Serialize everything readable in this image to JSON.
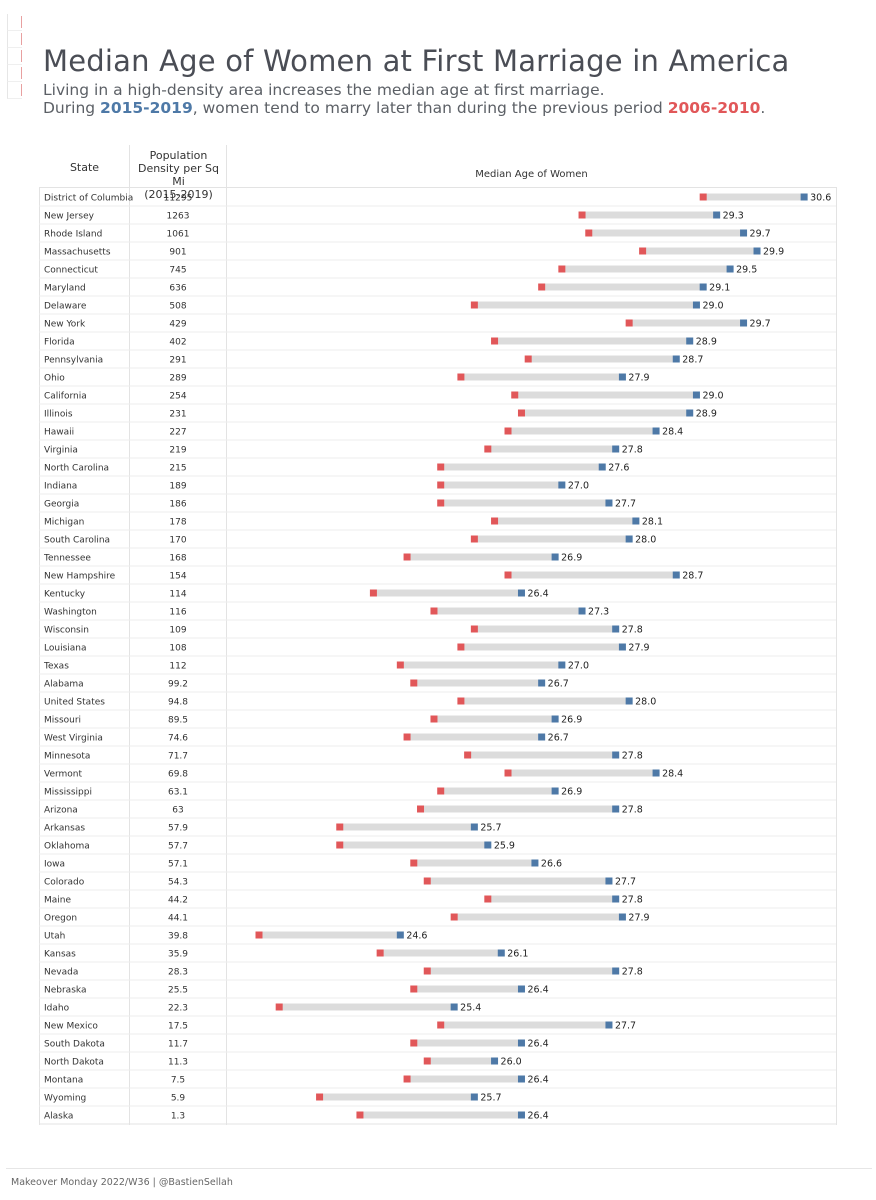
{
  "header": {
    "title": "Median Age of Women at First Marriage in America",
    "subtitle_line1": "Living in a high-density area increases the median age at first marriage.",
    "subtitle_line2_a": "During ",
    "subtitle_line2_b": "2015-2019",
    "subtitle_line2_c": ", women tend to marry later than during the previous period ",
    "subtitle_line2_d": "2006-2010",
    "subtitle_line2_e": "."
  },
  "columns": {
    "state": "State",
    "density_l1": "Population",
    "density_l2": "Density per Sq Mi",
    "density_l3": "(2015-2019)",
    "chart": "Median Age of Women"
  },
  "colors": {
    "period_2015_2019": "#4e79a7",
    "period_2006_2010": "#e15759",
    "range_bar": "#dcdcdc"
  },
  "footer": "Makeover Monday 2022/W36 | @BastienSellah",
  "chart_data": {
    "type": "dumbbell",
    "series_names": [
      "2006-2010",
      "2015-2019"
    ],
    "labels_shown_for": "2015-2019",
    "rows": [
      {
        "state": "District of Columbia",
        "density": "11295",
        "v2010": 29.1,
        "v2019": 30.6
      },
      {
        "state": "New Jersey",
        "density": "1263",
        "v2010": 27.3,
        "v2019": 29.3
      },
      {
        "state": "Rhode Island",
        "density": "1061",
        "v2010": 27.4,
        "v2019": 29.7
      },
      {
        "state": "Massachusetts",
        "density": "901",
        "v2010": 28.2,
        "v2019": 29.9
      },
      {
        "state": "Connecticut",
        "density": "745",
        "v2010": 27.0,
        "v2019": 29.5
      },
      {
        "state": "Maryland",
        "density": "636",
        "v2010": 26.7,
        "v2019": 29.1
      },
      {
        "state": "Delaware",
        "density": "508",
        "v2010": 25.7,
        "v2019": 29.0
      },
      {
        "state": "New York",
        "density": "429",
        "v2010": 28.0,
        "v2019": 29.7
      },
      {
        "state": "Florida",
        "density": "402",
        "v2010": 26.0,
        "v2019": 28.9
      },
      {
        "state": "Pennsylvania",
        "density": "291",
        "v2010": 26.5,
        "v2019": 28.7
      },
      {
        "state": "Ohio",
        "density": "289",
        "v2010": 25.5,
        "v2019": 27.9
      },
      {
        "state": "California",
        "density": "254",
        "v2010": 26.3,
        "v2019": 29.0
      },
      {
        "state": "Illinois",
        "density": "231",
        "v2010": 26.4,
        "v2019": 28.9
      },
      {
        "state": "Hawaii",
        "density": "227",
        "v2010": 26.2,
        "v2019": 28.4
      },
      {
        "state": "Virginia",
        "density": "219",
        "v2010": 25.9,
        "v2019": 27.8
      },
      {
        "state": "North Carolina",
        "density": "215",
        "v2010": 25.2,
        "v2019": 27.6
      },
      {
        "state": "Indiana",
        "density": "189",
        "v2010": 25.2,
        "v2019": 27.0
      },
      {
        "state": "Georgia",
        "density": "186",
        "v2010": 25.2,
        "v2019": 27.7
      },
      {
        "state": "Michigan",
        "density": "178",
        "v2010": 26.0,
        "v2019": 28.1
      },
      {
        "state": "South Carolina",
        "density": "170",
        "v2010": 25.7,
        "v2019": 28.0
      },
      {
        "state": "Tennessee",
        "density": "168",
        "v2010": 24.7,
        "v2019": 26.9
      },
      {
        "state": "New Hampshire",
        "density": "154",
        "v2010": 26.2,
        "v2019": 28.7
      },
      {
        "state": "Kentucky",
        "density": "114",
        "v2010": 24.2,
        "v2019": 26.4
      },
      {
        "state": "Washington",
        "density": "116",
        "v2010": 25.1,
        "v2019": 27.3
      },
      {
        "state": "Wisconsin",
        "density": "109",
        "v2010": 25.7,
        "v2019": 27.8
      },
      {
        "state": "Louisiana",
        "density": "108",
        "v2010": 25.5,
        "v2019": 27.9
      },
      {
        "state": "Texas",
        "density": "112",
        "v2010": 24.6,
        "v2019": 27.0
      },
      {
        "state": "Alabama",
        "density": "99.2",
        "v2010": 24.8,
        "v2019": 26.7
      },
      {
        "state": "United States",
        "density": "94.8",
        "v2010": 25.5,
        "v2019": 28.0
      },
      {
        "state": "Missouri",
        "density": "89.5",
        "v2010": 25.1,
        "v2019": 26.9
      },
      {
        "state": "West Virginia",
        "density": "74.6",
        "v2010": 24.7,
        "v2019": 26.7
      },
      {
        "state": "Minnesota",
        "density": "71.7",
        "v2010": 25.6,
        "v2019": 27.8
      },
      {
        "state": "Vermont",
        "density": "69.8",
        "v2010": 26.2,
        "v2019": 28.4
      },
      {
        "state": "Mississippi",
        "density": "63.1",
        "v2010": 25.2,
        "v2019": 26.9
      },
      {
        "state": "Arizona",
        "density": "63",
        "v2010": 24.9,
        "v2019": 27.8
      },
      {
        "state": "Arkansas",
        "density": "57.9",
        "v2010": 23.7,
        "v2019": 25.7
      },
      {
        "state": "Oklahoma",
        "density": "57.7",
        "v2010": 23.7,
        "v2019": 25.9
      },
      {
        "state": "Iowa",
        "density": "57.1",
        "v2010": 24.8,
        "v2019": 26.6
      },
      {
        "state": "Colorado",
        "density": "54.3",
        "v2010": 25.0,
        "v2019": 27.7
      },
      {
        "state": "Maine",
        "density": "44.2",
        "v2010": 25.9,
        "v2019": 27.8
      },
      {
        "state": "Oregon",
        "density": "44.1",
        "v2010": 25.4,
        "v2019": 27.9
      },
      {
        "state": "Utah",
        "density": "39.8",
        "v2010": 22.5,
        "v2019": 24.6
      },
      {
        "state": "Kansas",
        "density": "35.9",
        "v2010": 24.3,
        "v2019": 26.1
      },
      {
        "state": "Nevada",
        "density": "28.3",
        "v2010": 25.0,
        "v2019": 27.8
      },
      {
        "state": "Nebraska",
        "density": "25.5",
        "v2010": 24.8,
        "v2019": 26.4
      },
      {
        "state": "Idaho",
        "density": "22.3",
        "v2010": 22.8,
        "v2019": 25.4
      },
      {
        "state": "New Mexico",
        "density": "17.5",
        "v2010": 25.2,
        "v2019": 27.7
      },
      {
        "state": "South Dakota",
        "density": "11.7",
        "v2010": 24.8,
        "v2019": 26.4
      },
      {
        "state": "North Dakota",
        "density": "11.3",
        "v2010": 25.0,
        "v2019": 26.0
      },
      {
        "state": "Montana",
        "density": "7.5",
        "v2010": 24.7,
        "v2019": 26.4
      },
      {
        "state": "Wyoming",
        "density": "5.9",
        "v2010": 23.4,
        "v2019": 25.7
      },
      {
        "state": "Alaska",
        "density": "1.3",
        "v2010": 24.0,
        "v2019": 26.4
      }
    ]
  }
}
